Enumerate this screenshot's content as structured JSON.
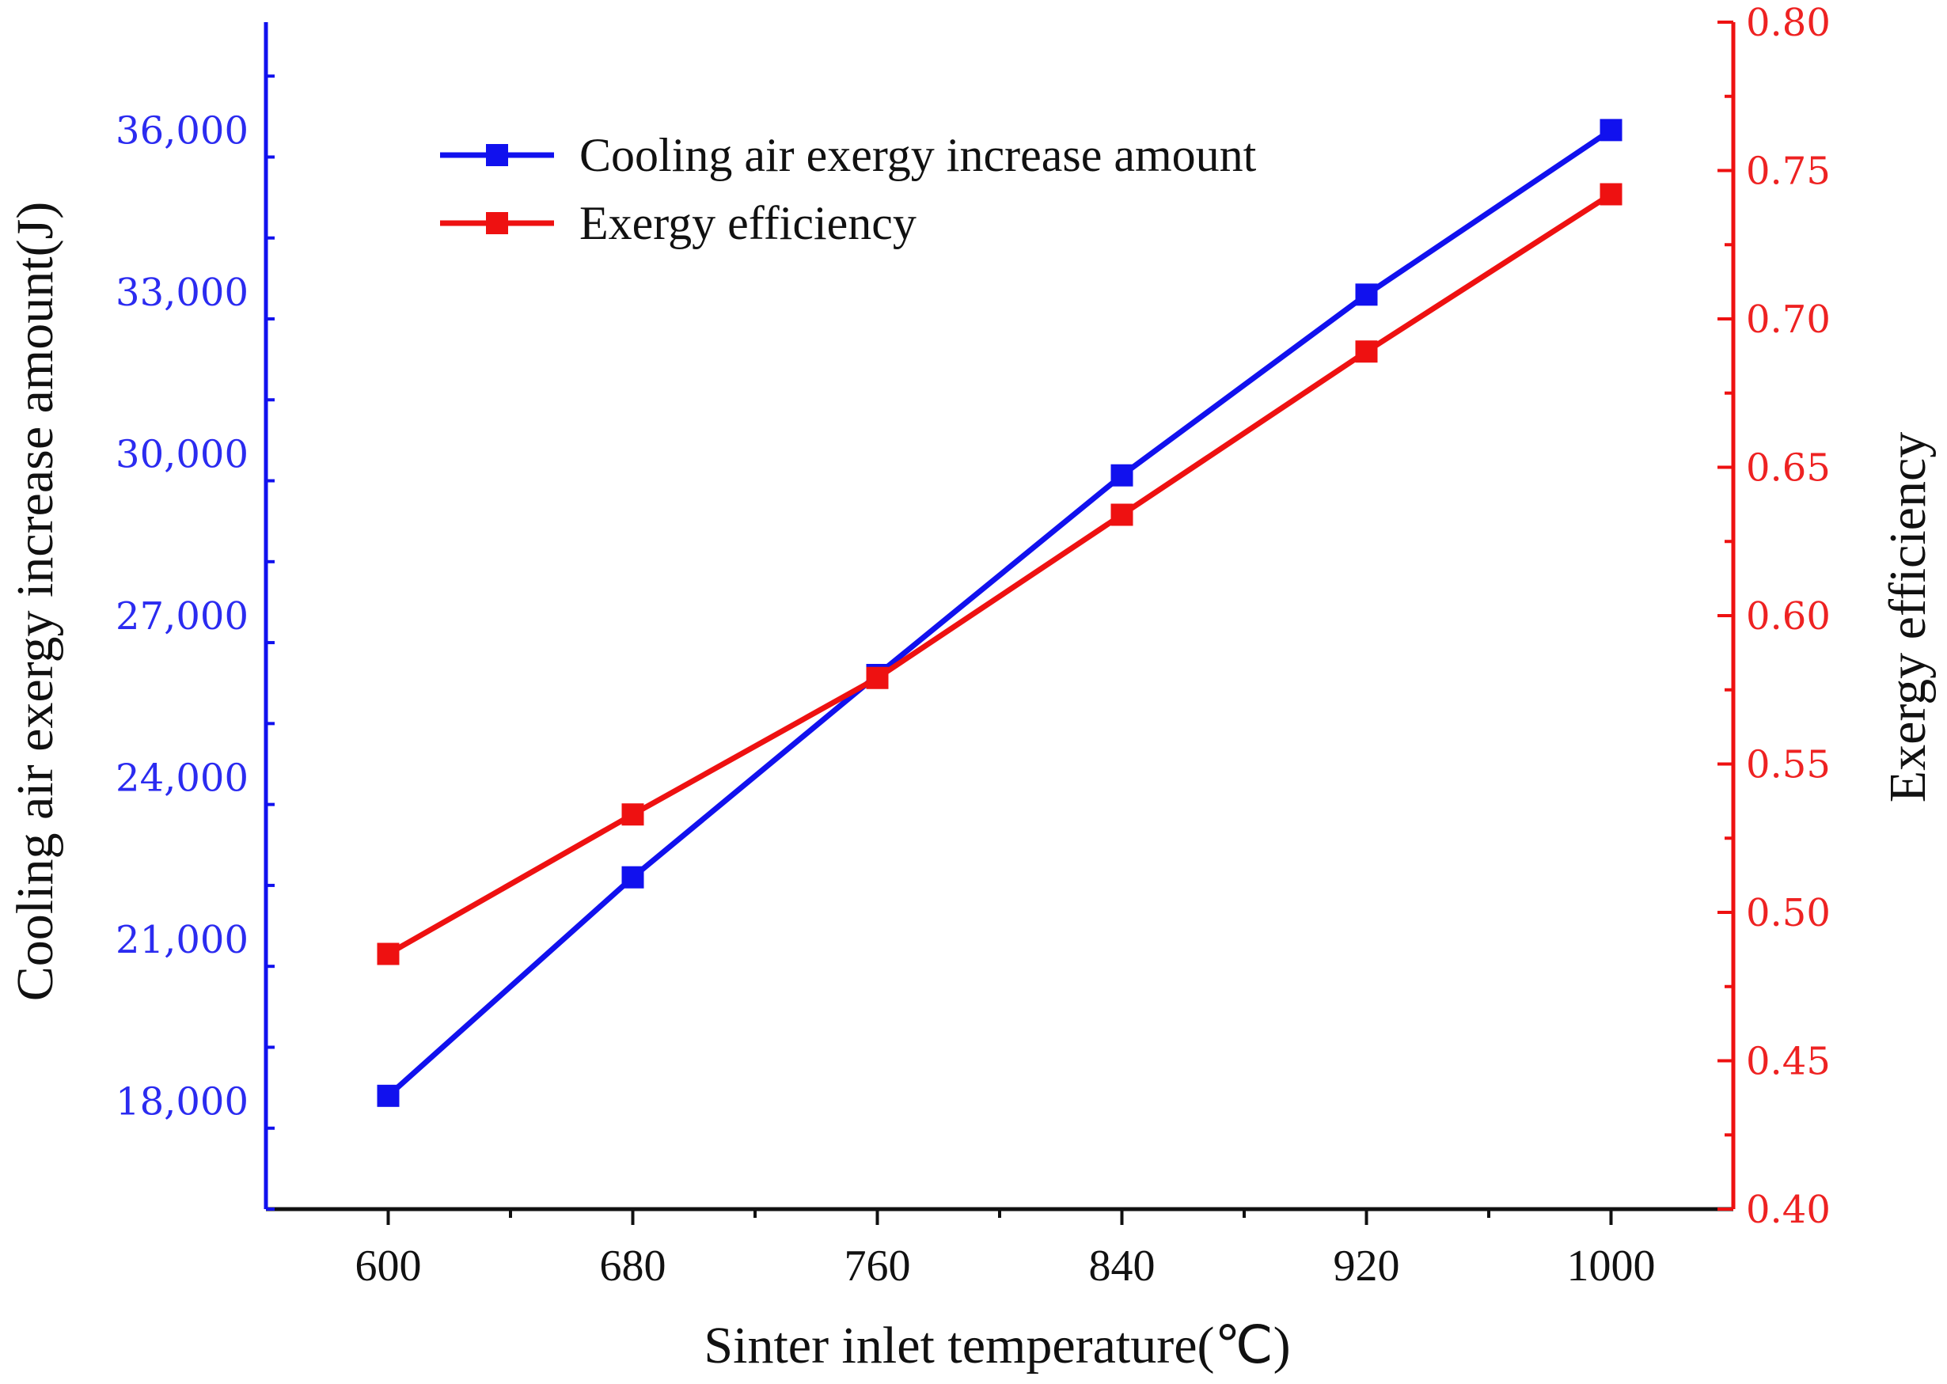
{
  "chart_data": {
    "type": "line",
    "x": [
      600,
      680,
      760,
      840,
      920,
      1000
    ],
    "xlabel": "Sinter inlet temperature(℃)",
    "xlim": [
      560,
      1040
    ],
    "ylabel_left": "Cooling air exergy increase amount(J)",
    "ylim_left": [
      16000,
      38000
    ],
    "yticks_left": [
      18000,
      21000,
      24000,
      27000,
      30000,
      33000,
      36000
    ],
    "ytick_labels_left": [
      "18,000",
      "21,000",
      "24,000",
      "27,000",
      "30,000",
      "33,000",
      "36,000"
    ],
    "ylabel_right": "Exergy efficiency",
    "ylim_right": [
      0.4,
      0.8
    ],
    "yticks_right": [
      0.4,
      0.45,
      0.5,
      0.55,
      0.6,
      0.65,
      0.7,
      0.75,
      0.8
    ],
    "ytick_labels_right": [
      "0.40",
      "0.45",
      "0.50",
      "0.55",
      "0.60",
      "0.65",
      "0.70",
      "0.75",
      "0.80"
    ],
    "series": [
      {
        "name": "Cooling air exergy increase amount",
        "axis": "left",
        "color": "#1111ee",
        "values": [
          18100,
          22150,
          25900,
          29600,
          32950,
          36000
        ]
      },
      {
        "name": "Exergy efficiency",
        "axis": "right",
        "color": "#ee1111",
        "values": [
          0.486,
          0.533,
          0.579,
          0.634,
          0.689,
          0.742
        ]
      }
    ],
    "legend_position": "top-left",
    "grid": false
  }
}
